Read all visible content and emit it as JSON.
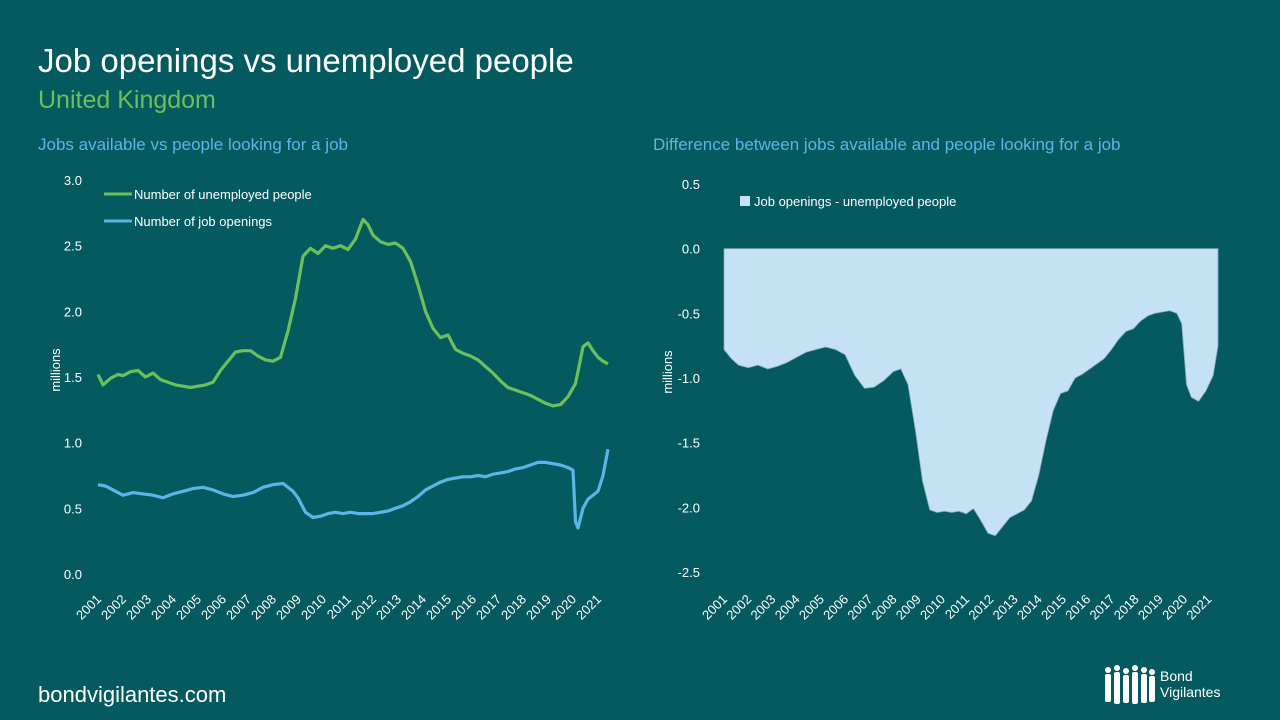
{
  "header": {
    "title": "Job openings vs unemployed people",
    "subtitle": "United Kingdom"
  },
  "footer": {
    "site": "bondvigilantes.com",
    "brand_line1": "Bond",
    "brand_line2": "Vigilantes"
  },
  "colors": {
    "background": "#055a5f",
    "unemployed": "#6dbf5a",
    "openings": "#5bb5e6",
    "difference_fill": "#c5e2f5"
  },
  "chart_data": [
    {
      "type": "line",
      "title": "Jobs available vs people looking for a job",
      "ylabel": "millions",
      "ylim": [
        0,
        3.0
      ],
      "yticks": [
        "0.0",
        "0.5",
        "1.0",
        "1.5",
        "2.0",
        "2.5",
        "3.0"
      ],
      "categories": [
        "2001",
        "2002",
        "2003",
        "2004",
        "2005",
        "2006",
        "2007",
        "2008",
        "2009",
        "2010",
        "2011",
        "2012",
        "2013",
        "2014",
        "2015",
        "2016",
        "2017",
        "2018",
        "2019",
        "2020",
        "2021"
      ],
      "legend_position": "top-left",
      "series": [
        {
          "name": "Number of unemployed people",
          "x": [
            2001.0,
            2001.2,
            2001.5,
            2001.8,
            2002.0,
            2002.3,
            2002.6,
            2002.9,
            2003.2,
            2003.5,
            2003.8,
            2004.1,
            2004.4,
            2004.7,
            2005.0,
            2005.3,
            2005.6,
            2005.9,
            2006.2,
            2006.5,
            2006.8,
            2007.1,
            2007.4,
            2007.7,
            2008.0,
            2008.3,
            2008.6,
            2008.9,
            2009.2,
            2009.5,
            2009.8,
            2010.1,
            2010.4,
            2010.7,
            2011.0,
            2011.3,
            2011.6,
            2011.8,
            2012.0,
            2012.3,
            2012.6,
            2012.9,
            2013.2,
            2013.5,
            2013.8,
            2014.1,
            2014.4,
            2014.7,
            2015.0,
            2015.3,
            2015.6,
            2015.9,
            2016.2,
            2016.5,
            2016.8,
            2017.1,
            2017.4,
            2017.7,
            2018.0,
            2018.3,
            2018.6,
            2018.9,
            2019.2,
            2019.5,
            2019.8,
            2020.1,
            2020.4,
            2020.6,
            2020.8,
            2021.0,
            2021.2,
            2021.4
          ],
          "values": [
            1.52,
            1.44,
            1.49,
            1.52,
            1.51,
            1.54,
            1.55,
            1.5,
            1.53,
            1.48,
            1.46,
            1.44,
            1.43,
            1.42,
            1.43,
            1.44,
            1.46,
            1.55,
            1.62,
            1.69,
            1.7,
            1.7,
            1.66,
            1.63,
            1.62,
            1.65,
            1.85,
            2.1,
            2.42,
            2.48,
            2.44,
            2.5,
            2.48,
            2.5,
            2.47,
            2.55,
            2.7,
            2.66,
            2.58,
            2.53,
            2.51,
            2.52,
            2.48,
            2.38,
            2.2,
            2.0,
            1.87,
            1.8,
            1.82,
            1.71,
            1.68,
            1.66,
            1.63,
            1.58,
            1.53,
            1.47,
            1.42,
            1.4,
            1.38,
            1.36,
            1.33,
            1.3,
            1.28,
            1.29,
            1.35,
            1.45,
            1.73,
            1.76,
            1.7,
            1.65,
            1.62,
            1.6
          ]
        },
        {
          "name": "Number of job openings",
          "x": [
            2001.0,
            2001.3,
            2001.6,
            2002.0,
            2002.4,
            2002.8,
            2003.2,
            2003.6,
            2004.0,
            2004.4,
            2004.8,
            2005.2,
            2005.6,
            2006.0,
            2006.4,
            2006.8,
            2007.2,
            2007.6,
            2008.0,
            2008.4,
            2008.8,
            2009.0,
            2009.3,
            2009.6,
            2009.9,
            2010.2,
            2010.5,
            2010.8,
            2011.1,
            2011.4,
            2011.7,
            2012.0,
            2012.3,
            2012.6,
            2012.9,
            2013.2,
            2013.5,
            2013.8,
            2014.1,
            2014.4,
            2014.7,
            2015.0,
            2015.3,
            2015.6,
            2015.9,
            2016.2,
            2016.5,
            2016.8,
            2017.1,
            2017.4,
            2017.7,
            2018.0,
            2018.3,
            2018.6,
            2018.9,
            2019.2,
            2019.5,
            2019.8,
            2020.0,
            2020.1,
            2020.2,
            2020.4,
            2020.6,
            2020.8,
            2021.0,
            2021.2,
            2021.4
          ],
          "values": [
            0.68,
            0.67,
            0.64,
            0.6,
            0.62,
            0.61,
            0.6,
            0.58,
            0.61,
            0.63,
            0.65,
            0.66,
            0.64,
            0.61,
            0.59,
            0.6,
            0.62,
            0.66,
            0.68,
            0.69,
            0.63,
            0.58,
            0.47,
            0.43,
            0.44,
            0.46,
            0.47,
            0.46,
            0.47,
            0.46,
            0.46,
            0.46,
            0.47,
            0.48,
            0.5,
            0.52,
            0.55,
            0.59,
            0.64,
            0.67,
            0.7,
            0.72,
            0.73,
            0.74,
            0.74,
            0.75,
            0.74,
            0.76,
            0.77,
            0.78,
            0.8,
            0.81,
            0.83,
            0.85,
            0.85,
            0.84,
            0.83,
            0.81,
            0.79,
            0.4,
            0.35,
            0.5,
            0.57,
            0.6,
            0.63,
            0.75,
            0.95
          ]
        }
      ]
    },
    {
      "type": "area",
      "title": "Difference between jobs available and people looking for a job",
      "ylabel": "millions",
      "ylim": [
        -2.5,
        0.5
      ],
      "yticks": [
        "0.5",
        "0.0",
        "-0.5",
        "-1.0",
        "-1.5",
        "-2.0",
        "-2.5"
      ],
      "categories": [
        "2001",
        "2002",
        "2003",
        "2004",
        "2005",
        "2006",
        "2007",
        "2008",
        "2009",
        "2010",
        "2011",
        "2012",
        "2013",
        "2014",
        "2015",
        "2016",
        "2017",
        "2018",
        "2019",
        "2020",
        "2021"
      ],
      "legend_position": "top-left",
      "series": [
        {
          "name": "Job openings - unemployed people",
          "x": [
            2001.0,
            2001.3,
            2001.6,
            2002.0,
            2002.4,
            2002.8,
            2003.2,
            2003.6,
            2004.0,
            2004.4,
            2004.8,
            2005.2,
            2005.6,
            2006.0,
            2006.4,
            2006.8,
            2007.2,
            2007.6,
            2008.0,
            2008.3,
            2008.6,
            2008.9,
            2009.2,
            2009.5,
            2009.8,
            2010.1,
            2010.4,
            2010.7,
            2011.0,
            2011.3,
            2011.6,
            2011.9,
            2012.2,
            2012.5,
            2012.8,
            2013.1,
            2013.4,
            2013.7,
            2014.0,
            2014.3,
            2014.6,
            2014.9,
            2015.2,
            2015.5,
            2015.8,
            2016.1,
            2016.4,
            2016.7,
            2017.0,
            2017.3,
            2017.6,
            2017.9,
            2018.2,
            2018.5,
            2018.8,
            2019.1,
            2019.4,
            2019.7,
            2019.9,
            2020.1,
            2020.3,
            2020.6,
            2020.9,
            2021.2,
            2021.4
          ],
          "values": [
            -0.78,
            -0.85,
            -0.9,
            -0.92,
            -0.9,
            -0.93,
            -0.91,
            -0.88,
            -0.84,
            -0.8,
            -0.78,
            -0.76,
            -0.78,
            -0.82,
            -0.98,
            -1.08,
            -1.07,
            -1.02,
            -0.95,
            -0.93,
            -1.05,
            -1.4,
            -1.8,
            -2.02,
            -2.04,
            -2.03,
            -2.04,
            -2.03,
            -2.05,
            -2.01,
            -2.1,
            -2.2,
            -2.22,
            -2.15,
            -2.08,
            -2.05,
            -2.02,
            -1.95,
            -1.75,
            -1.48,
            -1.25,
            -1.12,
            -1.1,
            -1.0,
            -0.97,
            -0.93,
            -0.89,
            -0.85,
            -0.78,
            -0.7,
            -0.64,
            -0.62,
            -0.56,
            -0.52,
            -0.5,
            -0.49,
            -0.48,
            -0.5,
            -0.58,
            -1.05,
            -1.15,
            -1.18,
            -1.1,
            -0.98,
            -0.75
          ]
        }
      ]
    }
  ]
}
